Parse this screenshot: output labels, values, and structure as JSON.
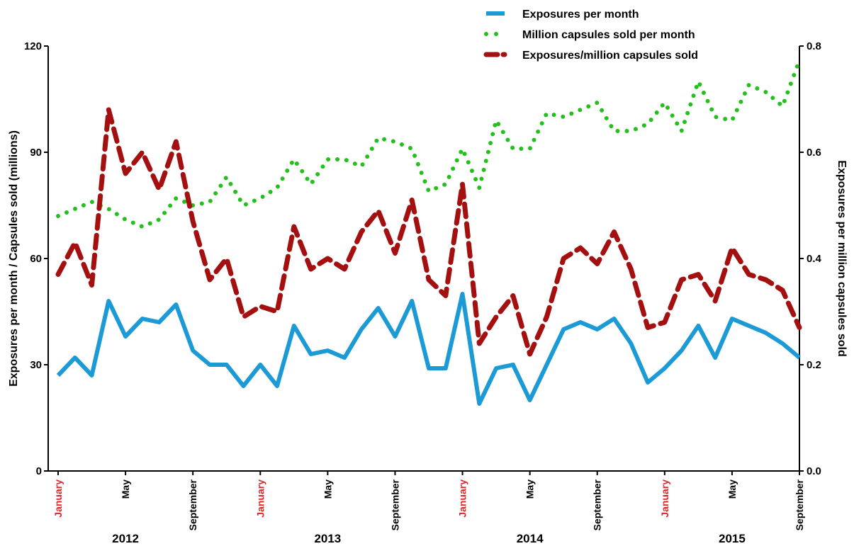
{
  "chart_data": {
    "type": "line",
    "x_ticks": [
      {
        "label": "January",
        "highlight": true
      },
      {
        "label": "May",
        "highlight": false
      },
      {
        "label": "September",
        "highlight": false
      },
      {
        "label": "January",
        "highlight": true
      },
      {
        "label": "May",
        "highlight": false
      },
      {
        "label": "September",
        "highlight": false
      },
      {
        "label": "January",
        "highlight": true
      },
      {
        "label": "May",
        "highlight": false
      },
      {
        "label": "September",
        "highlight": false
      },
      {
        "label": "January",
        "highlight": true
      },
      {
        "label": "May",
        "highlight": false
      },
      {
        "label": "September",
        "highlight": false
      }
    ],
    "year_labels": [
      "2012",
      "2013",
      "2014",
      "2015"
    ],
    "ylabel_left": "Exposures per month / Capsules sold (millions)",
    "ylabel_right": "Exposures per million capsules sold",
    "y_left_ticks": [
      "0",
      "30",
      "60",
      "90",
      "120"
    ],
    "y_right_ticks": [
      "0.0",
      "0.2",
      "0.4",
      "0.6",
      "0.8"
    ],
    "ylim_left": [
      0,
      120
    ],
    "ylim_right": [
      0,
      0.8
    ],
    "legend_position": "top-center",
    "colors": {
      "exposures": "#1b9ad6",
      "capsules": "#22c01a",
      "ratio": "#a40f0f",
      "january_label": "#e0262b"
    },
    "series": [
      {
        "name": "Exposures per month",
        "axis": "left",
        "style": "solid",
        "values": [
          27,
          32,
          27,
          48,
          38,
          43,
          42,
          47,
          34,
          30,
          30,
          24,
          30,
          24,
          41,
          33,
          34,
          32,
          40,
          46,
          38,
          48,
          29,
          29,
          50,
          19,
          29,
          30,
          20,
          30,
          40,
          42,
          40,
          43,
          36,
          25,
          29,
          34,
          41,
          32,
          43,
          41,
          39,
          36,
          32
        ]
      },
      {
        "name": "Million capsules sold per month",
        "axis": "left",
        "style": "dotted",
        "values": [
          72,
          74,
          76,
          74,
          71,
          69,
          71,
          77,
          75,
          76,
          83,
          75,
          77,
          80,
          88,
          81,
          88,
          88,
          86,
          94,
          93,
          91,
          79,
          81,
          91,
          80,
          99,
          91,
          91,
          101,
          100,
          102,
          104,
          96,
          96,
          98,
          104,
          96,
          110,
          100,
          99,
          109,
          107,
          103,
          116
        ]
      },
      {
        "name": "Exposures/million capsules sold",
        "axis": "right",
        "style": "dashed",
        "values": [
          0.37,
          0.43,
          0.35,
          0.68,
          0.56,
          0.6,
          0.53,
          0.62,
          0.47,
          0.36,
          0.4,
          0.29,
          0.31,
          0.3,
          0.46,
          0.38,
          0.4,
          0.38,
          0.45,
          0.49,
          0.41,
          0.51,
          0.36,
          0.33,
          0.54,
          0.24,
          0.29,
          0.33,
          0.22,
          0.29,
          0.4,
          0.42,
          0.39,
          0.45,
          0.38,
          0.27,
          0.28,
          0.36,
          0.37,
          0.32,
          0.42,
          0.37,
          0.36,
          0.34,
          0.27
        ]
      }
    ]
  }
}
